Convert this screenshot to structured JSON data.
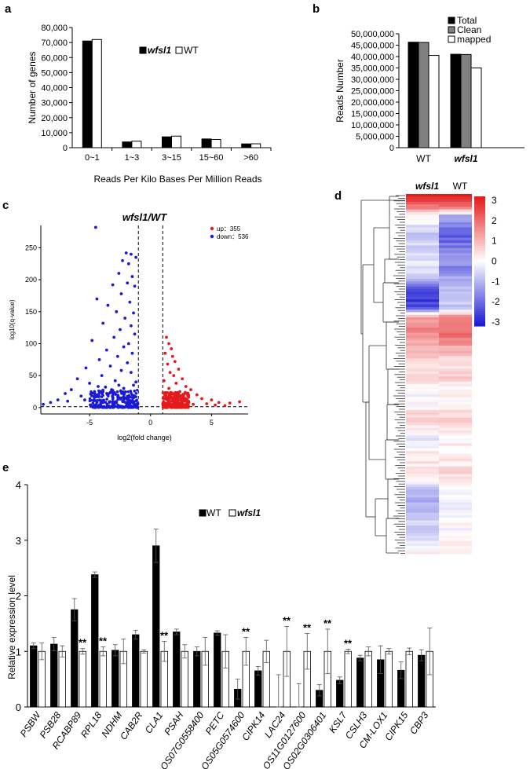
{
  "chart_data": [
    {
      "panel": "a",
      "type": "bar",
      "xlabel": "Reads Per Kilo Bases Per Million Reads",
      "ylabel": "Number of genes",
      "ylim": [
        0,
        80000
      ],
      "ytick_labels": [
        "0",
        "10,000",
        "20,000",
        "30,000",
        "40,000",
        "50,000",
        "60,000",
        "70,000",
        "80,000"
      ],
      "ytick_values": [
        0,
        10000,
        20000,
        30000,
        40000,
        50000,
        60000,
        70000,
        80000
      ],
      "categories": [
        "0~1",
        "1~3",
        "3~15",
        "15~60",
        ">60"
      ],
      "series": [
        {
          "name": "wfsl1",
          "color": "#000000",
          "values": [
            71000,
            3800,
            7200,
            5800,
            2500
          ]
        },
        {
          "name": "WT",
          "color": "#ffffff",
          "values": [
            72000,
            4300,
            7700,
            5500,
            2600
          ]
        }
      ],
      "legend": "top-right"
    },
    {
      "panel": "b",
      "type": "bar",
      "ylabel": "Reads Number",
      "ylim": [
        0,
        50000000
      ],
      "ytick_labels": [
        "0",
        "5,000,000",
        "10,000,000",
        "15,000,000",
        "20,000,000",
        "25,000,000",
        "30,000,000",
        "35,000,000",
        "40,000,000",
        "45,000,000",
        "50,000,000"
      ],
      "ytick_values": [
        0,
        5000000,
        10000000,
        15000000,
        20000000,
        25000000,
        30000000,
        35000000,
        40000000,
        45000000,
        50000000
      ],
      "categories": [
        "WT",
        "wfsl1"
      ],
      "series": [
        {
          "name": "Total",
          "color": "#000000",
          "values": [
            46300000,
            41000000
          ]
        },
        {
          "name": "Clean",
          "color": "#808080",
          "values": [
            46200000,
            40900000
          ]
        },
        {
          "name": "mapped",
          "color": "#ffffff",
          "values": [
            40500000,
            35000000
          ]
        }
      ],
      "legend": "top-right"
    },
    {
      "panel": "c",
      "type": "scatter",
      "title": "wfsl1/WT",
      "xlabel": "log2(fold change)",
      "ylabel": "log10(q-value)",
      "xlim": [
        -9,
        8
      ],
      "ylim": [
        -10,
        285
      ],
      "xtick_labels": [
        "-5",
        "0",
        "5"
      ],
      "xtick_values": [
        -5,
        0,
        5
      ],
      "ytick_labels": [
        "0",
        "50",
        "100",
        "150",
        "200",
        "250"
      ],
      "ytick_values": [
        0,
        50,
        100,
        150,
        200,
        250
      ],
      "thresholds": {
        "vertical": [
          -1,
          1
        ],
        "horizontal": 1.3
      },
      "legend_entries": [
        {
          "label": "up：355",
          "color": "#e41a1c"
        },
        {
          "label": "down：536",
          "color": "#1a1ad4"
        }
      ],
      "counts": {
        "up": 355,
        "down": 536
      },
      "series": [
        {
          "name": "up",
          "color": "#e41a1c",
          "points": [
            [
              1.3,
              110
            ],
            [
              1.5,
              100
            ],
            [
              1.7,
              92
            ],
            [
              1.2,
              85
            ],
            [
              1.8,
              80
            ],
            [
              2.0,
              72
            ],
            [
              1.4,
              68
            ],
            [
              2.3,
              60
            ],
            [
              1.6,
              55
            ],
            [
              1.9,
              50
            ],
            [
              2.6,
              45
            ],
            [
              1.1,
              42
            ],
            [
              2.1,
              38
            ],
            [
              2.9,
              33
            ],
            [
              1.5,
              30
            ],
            [
              3.3,
              28
            ],
            [
              2.4,
              25
            ],
            [
              1.2,
              22
            ],
            [
              3.8,
              20
            ],
            [
              2.7,
              18
            ],
            [
              4.2,
              14
            ],
            [
              5.0,
              12
            ],
            [
              3.1,
              10
            ],
            [
              5.6,
              8
            ],
            [
              6.5,
              7
            ],
            [
              7.3,
              9
            ],
            [
              4.6,
              6
            ],
            [
              3.5,
              5
            ],
            [
              5.3,
              4
            ],
            [
              6.1,
              3
            ],
            [
              2.2,
              4
            ],
            [
              1.7,
              3
            ]
          ],
          "dense_band": {
            "x": [
              1.0,
              3.2
            ],
            "y": [
              0,
              24
            ]
          }
        },
        {
          "name": "down",
          "color": "#1a1ad4",
          "points": [
            [
              -4.5,
              282
            ],
            [
              -2.0,
              242
            ],
            [
              -1.6,
              240
            ],
            [
              -2.3,
              230
            ],
            [
              -1.8,
              225
            ],
            [
              -1.2,
              235
            ],
            [
              -2.6,
              210
            ],
            [
              -1.5,
              205
            ],
            [
              -1.9,
              195
            ],
            [
              -3.1,
              192
            ],
            [
              -1.3,
              190
            ],
            [
              -2.4,
              178
            ],
            [
              -4.4,
              170
            ],
            [
              -1.7,
              165
            ],
            [
              -3.5,
              160
            ],
            [
              -2.8,
              150
            ],
            [
              -1.4,
              148
            ],
            [
              -2.1,
              140
            ],
            [
              -3.9,
              132
            ],
            [
              -1.6,
              128
            ],
            [
              -2.5,
              122
            ],
            [
              -1.3,
              115
            ],
            [
              -3.0,
              110
            ],
            [
              -4.8,
              105
            ],
            [
              -1.8,
              100
            ],
            [
              -2.2,
              95
            ],
            [
              -3.6,
              90
            ],
            [
              -1.5,
              85
            ],
            [
              -2.7,
              80
            ],
            [
              -4.2,
              75
            ],
            [
              -1.9,
              70
            ],
            [
              -3.3,
              65
            ],
            [
              -5.3,
              62
            ],
            [
              -2.4,
              58
            ],
            [
              -1.6,
              55
            ],
            [
              -4.0,
              50
            ],
            [
              -6.0,
              45
            ],
            [
              -2.9,
              42
            ],
            [
              -5.0,
              38
            ],
            [
              -1.4,
              35
            ],
            [
              -3.7,
              32
            ],
            [
              -6.5,
              28
            ],
            [
              -2.2,
              30
            ],
            [
              -7.0,
              22
            ],
            [
              -4.6,
              25
            ],
            [
              -5.7,
              18
            ],
            [
              -7.6,
              12
            ],
            [
              -8.2,
              8
            ],
            [
              -6.8,
              10
            ],
            [
              -8.8,
              5
            ],
            [
              -5.4,
              12
            ],
            [
              -3.2,
              28
            ],
            [
              -2.6,
              35
            ],
            [
              -1.2,
              40
            ],
            [
              -4.3,
              33
            ]
          ],
          "dense_band": {
            "x": [
              -5.0,
              -1.0
            ],
            "y": [
              0,
              28
            ]
          }
        }
      ]
    },
    {
      "panel": "d",
      "type": "heatmap",
      "columns": [
        "wfsl1",
        "WT"
      ],
      "colorbar_tick_labels": [
        "3",
        "2",
        "1",
        "0",
        "-1",
        "-2",
        "-3"
      ],
      "colorbar_tick_values": [
        3,
        2,
        1,
        0,
        -1,
        -2,
        -3
      ],
      "color_range": {
        "low": "#1a1ad4",
        "mid": "#ffffff",
        "high": "#e41a1c"
      },
      "column_profiles": [
        [
          3.0,
          2.1,
          0.2,
          -0.4,
          -0.8,
          -0.6,
          -0.3,
          -0.5,
          -0.7,
          -2.2,
          -2.8,
          -2.4,
          1.4,
          1.8,
          1.5,
          0.9,
          0.7,
          0.3,
          0.5,
          0.1,
          -0.2,
          0.3,
          0.6,
          0.2,
          -0.3,
          0.1,
          0.3,
          0.4,
          -0.2,
          -0.8,
          -1.1,
          -0.9,
          -0.5,
          -0.7,
          -0.3,
          0.2
        ],
        [
          3.1,
          2.3,
          -1.2,
          -1.8,
          -2.2,
          -1.9,
          -1.4,
          -1.7,
          -1.3,
          -1.1,
          -0.7,
          -0.9,
          1.8,
          2.1,
          1.9,
          1.1,
          0.6,
          0.4,
          0.7,
          0.2,
          0.1,
          0.5,
          0.8,
          0.4,
          0.1,
          0.2,
          0.3,
          0.5,
          0.3,
          -0.1,
          -0.4,
          -0.2,
          0.1,
          -0.1,
          0.2,
          0.4
        ]
      ]
    },
    {
      "panel": "e",
      "type": "bar",
      "ylabel": "Relative expression level",
      "ylim": [
        0,
        4
      ],
      "ytick_labels": [
        "0",
        "1",
        "2",
        "3",
        "4"
      ],
      "ytick_values": [
        0,
        1,
        2,
        3,
        4
      ],
      "categories": [
        "PSBW",
        "PSB28",
        "RCABP89",
        "RPL18",
        "NDHM",
        "CAB2R",
        "CLA1",
        "PSAH",
        "OS07G0558400",
        "PETC",
        "OS05G0574600",
        "CIPK14",
        "LAC24",
        "OS11G0127600",
        "OS02G0306401",
        "KSL7",
        "CSLH3",
        "CM-LOX1",
        "CIPK15",
        "CBP3"
      ],
      "series": [
        {
          "name": "WT",
          "color": "#000000",
          "values": [
            1.1,
            1.13,
            1.75,
            2.38,
            1.02,
            1.3,
            2.9,
            1.35,
            1.0,
            1.33,
            0.32,
            0.65,
            0.0,
            0.0,
            0.3,
            0.48,
            0.88,
            0.85,
            0.66,
            0.93
          ],
          "errors": [
            0.05,
            0.12,
            0.2,
            0.05,
            0.1,
            0.08,
            0.3,
            0.05,
            0.08,
            0.04,
            0.18,
            0.08,
            0.58,
            0.42,
            0.1,
            0.06,
            0.05,
            0.25,
            0.15,
            0.1
          ]
        },
        {
          "name": "wfsl1",
          "color": "#ffffff",
          "values": [
            1.0,
            1.0,
            1.0,
            1.0,
            1.0,
            1.0,
            1.0,
            1.0,
            1.0,
            1.0,
            1.0,
            1.0,
            1.0,
            1.0,
            1.0,
            1.0,
            1.0,
            1.0,
            1.0,
            1.0
          ],
          "errors": [
            0.15,
            0.1,
            0.05,
            0.08,
            0.22,
            0.03,
            0.18,
            0.12,
            0.25,
            0.3,
            0.25,
            0.2,
            0.45,
            0.32,
            0.4,
            0.04,
            0.08,
            0.05,
            0.06,
            0.42
          ]
        }
      ],
      "significance": [
        "",
        "",
        "**",
        "**",
        "",
        "",
        "**",
        "",
        "",
        "",
        "**",
        "",
        "**",
        "**",
        "**",
        "**",
        "",
        "",
        "",
        ""
      ],
      "legend": "top-center"
    }
  ],
  "panel_labels": {
    "a": "a",
    "b": "b",
    "c": "c",
    "d": "d",
    "e": "e"
  }
}
